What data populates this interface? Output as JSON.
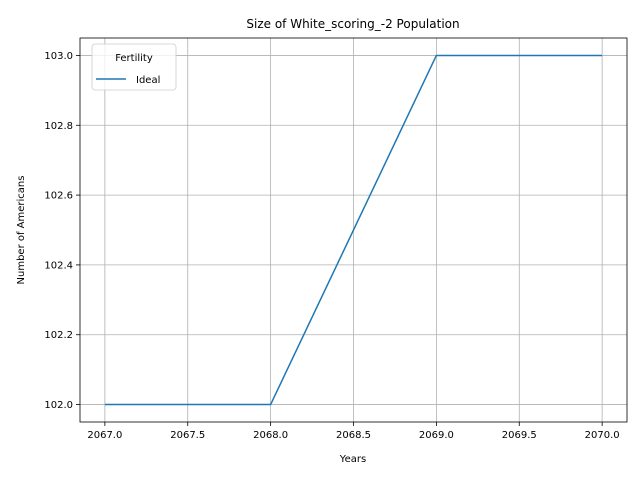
{
  "chart_data": {
    "type": "line",
    "title": "Size of White_scoring_-2 Population",
    "xlabel": "Years",
    "ylabel": "Number of Americans",
    "xlim": [
      2066.85,
      2070.15
    ],
    "ylim": [
      101.95,
      103.05
    ],
    "xticks": [
      2067.0,
      2067.5,
      2068.0,
      2068.5,
      2069.0,
      2069.5,
      2070.0
    ],
    "xtick_labels": [
      "2067.0",
      "2067.5",
      "2068.0",
      "2068.5",
      "2069.0",
      "2069.5",
      "2070.0"
    ],
    "yticks": [
      102.0,
      102.2,
      102.4,
      102.6,
      102.8,
      103.0
    ],
    "ytick_labels": [
      "102.0",
      "102.2",
      "102.4",
      "102.6",
      "102.8",
      "103.0"
    ],
    "grid": true,
    "legend": {
      "title": "Fertility",
      "position": "top-left"
    },
    "series": [
      {
        "name": "Ideal",
        "color": "#1f77b4",
        "x": [
          2067,
          2068,
          2069,
          2070
        ],
        "y": [
          102,
          102,
          103,
          103
        ]
      }
    ]
  }
}
